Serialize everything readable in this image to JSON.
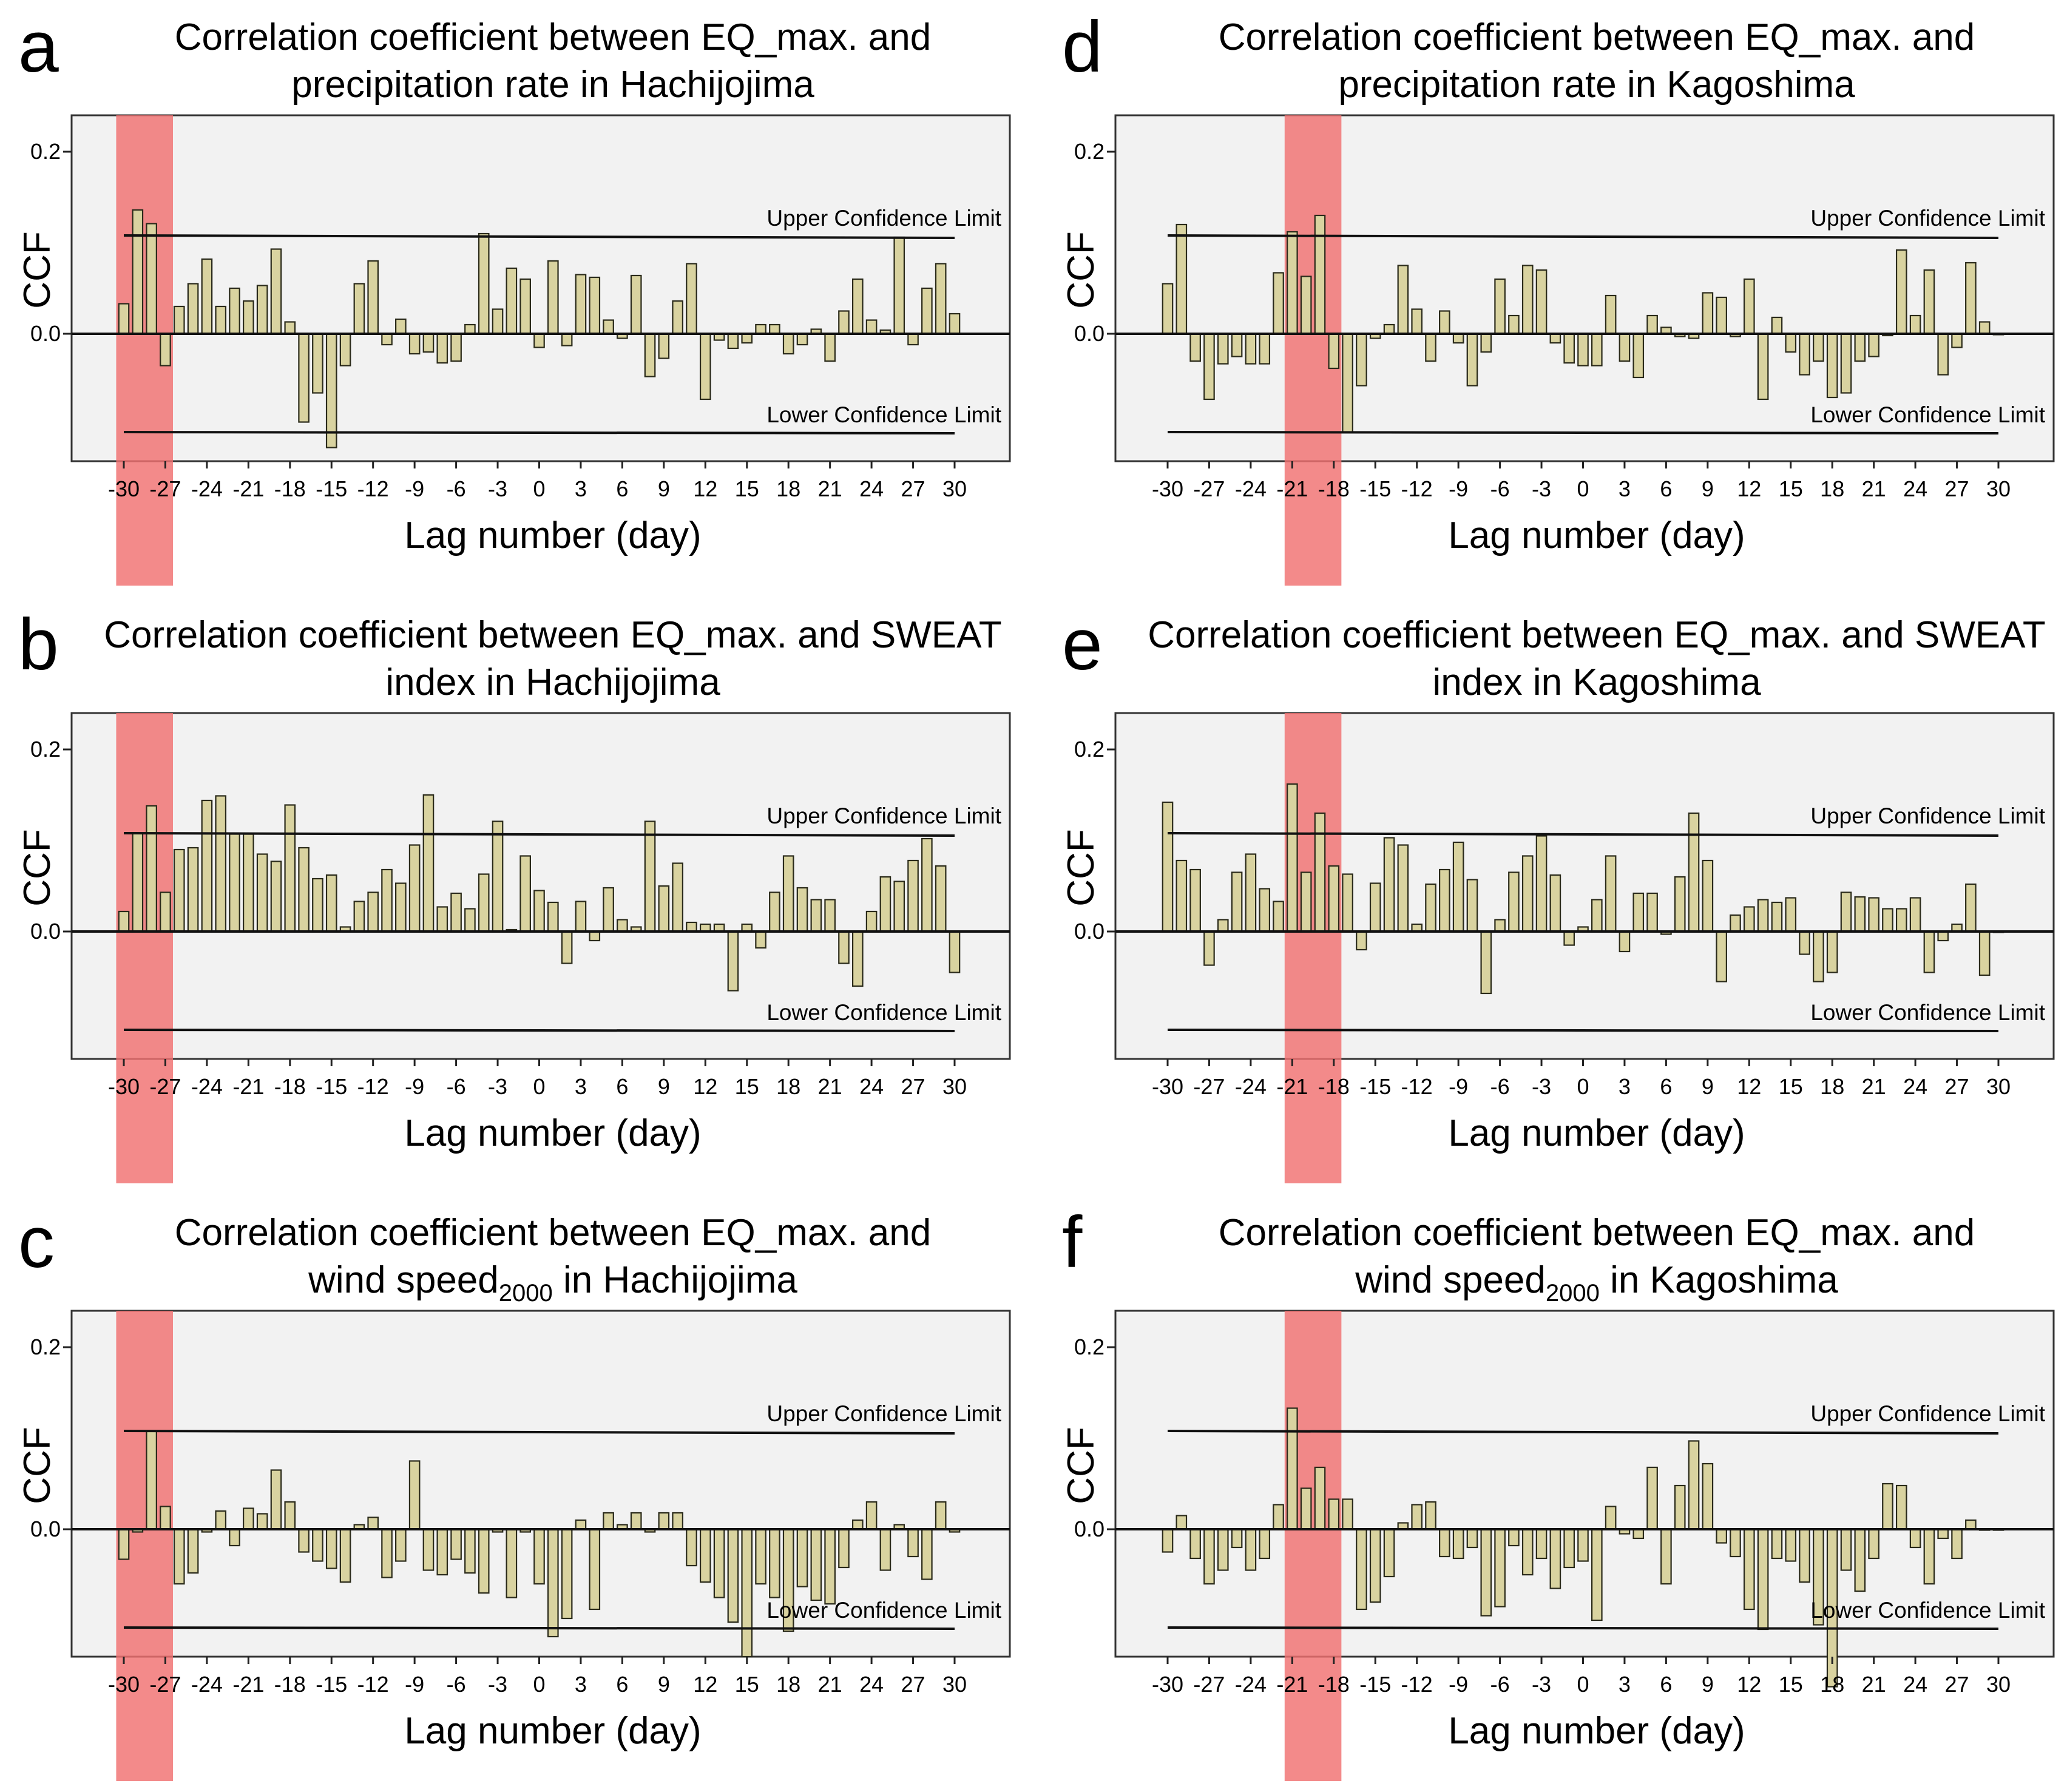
{
  "figure": {
    "shared_axes": {
      "xlabel": "Lag number (day)",
      "ylabel": "CCF",
      "yticks": [
        "0.0",
        "0.2"
      ],
      "ytick_values": [
        0.0,
        0.2
      ],
      "ylim": [
        -0.14,
        0.24
      ],
      "xticks": [
        "-30",
        "-27",
        "-24",
        "-21",
        "-18",
        "-15",
        "-12",
        "-9",
        "-6",
        "-3",
        "0",
        "3",
        "6",
        "9",
        "12",
        "15",
        "18",
        "21",
        "24",
        "27",
        "30"
      ],
      "upper_label": "Upper Confidence Limit",
      "lower_label": "Lower Confidence Limit"
    },
    "colors": {
      "bar_fill": "#d9d3a0",
      "bar_stroke": "#2a2a1a",
      "plot_bg": "#f2f2f2",
      "highlight": "#f07070"
    }
  },
  "chart_data": [
    {
      "type": "bar",
      "letter": "a",
      "title_line1": "Correlation coefficient between EQ_max. and",
      "title_line2": "precipitation rate in Hachijojima",
      "upper_limit": 0.108,
      "lower_limit": -0.108,
      "highlight_lags": [
        -30,
        -27
      ],
      "lags": [
        -30,
        30
      ],
      "values": [
        0.033,
        0.136,
        0.121,
        -0.035,
        0.03,
        0.055,
        0.082,
        0.03,
        0.05,
        0.036,
        0.053,
        0.093,
        0.013,
        -0.097,
        -0.065,
        -0.125,
        -0.035,
        0.055,
        0.08,
        -0.012,
        0.016,
        -0.022,
        -0.02,
        -0.032,
        -0.03,
        0.01,
        0.11,
        0.027,
        0.072,
        0.06,
        -0.015,
        0.08,
        -0.013,
        0.065,
        0.062,
        0.015,
        -0.005,
        0.064,
        -0.047,
        -0.027,
        0.036,
        0.077,
        -0.072,
        -0.007,
        -0.016,
        -0.01,
        0.01,
        0.01,
        -0.022,
        -0.012,
        0.005,
        -0.03,
        0.025,
        0.06,
        0.015,
        0.004,
        0.106,
        -0.012,
        0.05,
        0.077,
        0.022
      ]
    },
    {
      "type": "bar",
      "letter": "b",
      "title_line1": "Correlation coefficient between EQ_max. and SWEAT",
      "title_line2": "index in Hachijojima",
      "upper_limit": 0.108,
      "lower_limit": -0.108,
      "highlight_lags": [
        -30,
        -27
      ],
      "lags": [
        -30,
        30
      ],
      "values": [
        0.022,
        0.108,
        0.138,
        0.043,
        0.09,
        0.092,
        0.144,
        0.149,
        0.107,
        0.107,
        0.085,
        0.077,
        0.139,
        0.092,
        0.058,
        0.062,
        0.005,
        0.033,
        0.043,
        0.068,
        0.053,
        0.095,
        0.15,
        0.027,
        0.042,
        0.025,
        0.063,
        0.121,
        0.002,
        0.083,
        0.045,
        0.032,
        -0.035,
        0.033,
        -0.01,
        0.048,
        0.013,
        0.005,
        0.121,
        0.05,
        0.075,
        0.01,
        0.008,
        0.008,
        -0.065,
        0.008,
        -0.018,
        0.043,
        0.083,
        0.048,
        0.035,
        0.035,
        -0.035,
        -0.06,
        0.022,
        0.06,
        0.055,
        0.078,
        0.102,
        0.072,
        -0.045
      ]
    },
    {
      "type": "bar",
      "letter": "c",
      "title_line1": "Correlation coefficient between EQ_max. and",
      "title_line2_pre": "wind speed",
      "title_line2_sub": "2000",
      "title_line2_post": " in Hachijojima",
      "upper_limit": 0.108,
      "lower_limit": -0.108,
      "highlight_lags": [
        -30,
        -27
      ],
      "lags": [
        -30,
        30
      ],
      "values": [
        -0.033,
        -0.003,
        0.108,
        0.025,
        -0.06,
        -0.048,
        -0.003,
        0.02,
        -0.018,
        0.023,
        0.017,
        0.065,
        0.03,
        -0.025,
        -0.035,
        -0.043,
        -0.058,
        0.005,
        0.013,
        -0.053,
        -0.035,
        0.075,
        -0.045,
        -0.05,
        -0.033,
        -0.048,
        -0.07,
        -0.003,
        -0.075,
        -0.003,
        -0.06,
        -0.118,
        -0.098,
        0.01,
        -0.088,
        0.018,
        0.005,
        0.018,
        -0.003,
        0.018,
        0.018,
        -0.04,
        -0.058,
        -0.075,
        -0.102,
        -0.14,
        -0.06,
        -0.075,
        -0.112,
        -0.063,
        -0.078,
        -0.082,
        -0.042,
        0.01,
        0.03,
        -0.045,
        0.005,
        -0.03,
        -0.055,
        0.03,
        -0.003
      ]
    },
    {
      "type": "bar",
      "letter": "d",
      "title_line1": "Correlation coefficient between EQ_max. and",
      "title_line2": "precipitation rate in Kagoshima",
      "upper_limit": 0.108,
      "lower_limit": -0.108,
      "highlight_lags": [
        -21,
        -18
      ],
      "lags": [
        -30,
        30
      ],
      "values": [
        0.055,
        0.12,
        -0.03,
        -0.072,
        -0.033,
        -0.025,
        -0.033,
        -0.033,
        0.067,
        0.112,
        0.063,
        0.13,
        -0.038,
        -0.108,
        -0.057,
        -0.005,
        0.01,
        0.075,
        0.027,
        -0.03,
        0.025,
        -0.01,
        -0.057,
        -0.02,
        0.06,
        0.02,
        0.075,
        0.07,
        -0.01,
        -0.032,
        -0.035,
        -0.035,
        0.042,
        -0.03,
        -0.048,
        0.02,
        0.007,
        -0.003,
        -0.005,
        0.045,
        0.04,
        -0.003,
        0.06,
        -0.072,
        0.018,
        -0.02,
        -0.045,
        -0.03,
        -0.07,
        -0.065,
        -0.03,
        -0.025,
        -0.002,
        0.092,
        0.02,
        0.07,
        -0.045,
        -0.015,
        0.078,
        0.013,
        0.0
      ]
    },
    {
      "type": "bar",
      "letter": "e",
      "title_line1": "Correlation coefficient between EQ_max. and SWEAT",
      "title_line2": "index in Kagoshima",
      "upper_limit": 0.108,
      "lower_limit": -0.108,
      "highlight_lags": [
        -21,
        -18
      ],
      "lags": [
        -30,
        30
      ],
      "values": [
        0.142,
        0.078,
        0.068,
        -0.037,
        0.013,
        0.065,
        0.085,
        0.047,
        0.033,
        0.162,
        0.065,
        0.13,
        0.072,
        0.063,
        -0.02,
        0.053,
        0.103,
        0.095,
        0.008,
        0.052,
        0.068,
        0.098,
        0.057,
        -0.068,
        0.013,
        0.065,
        0.083,
        0.105,
        0.062,
        -0.015,
        0.005,
        0.035,
        0.083,
        -0.022,
        0.042,
        0.042,
        -0.003,
        0.06,
        0.13,
        0.078,
        -0.055,
        0.018,
        0.027,
        0.035,
        0.032,
        0.037,
        -0.025,
        -0.055,
        -0.045,
        0.043,
        0.038,
        0.037,
        0.025,
        0.025,
        0.037,
        -0.045,
        -0.01,
        0.008,
        0.052,
        -0.048,
        0.0
      ]
    },
    {
      "type": "bar",
      "letter": "f",
      "title_line1": "Correlation coefficient between EQ_max. and",
      "title_line2_pre": "wind speed",
      "title_line2_sub": "2000",
      "title_line2_post": " in Kagoshima",
      "upper_limit": 0.108,
      "lower_limit": -0.108,
      "highlight_lags": [
        -21,
        -18
      ],
      "lags": [
        -30,
        30
      ],
      "values": [
        -0.025,
        0.015,
        -0.032,
        -0.06,
        -0.045,
        -0.02,
        -0.045,
        -0.032,
        0.027,
        0.133,
        0.045,
        0.068,
        0.033,
        0.033,
        -0.088,
        -0.08,
        -0.052,
        0.007,
        0.027,
        0.03,
        -0.03,
        -0.032,
        -0.02,
        -0.095,
        -0.085,
        -0.018,
        -0.05,
        -0.032,
        -0.065,
        -0.042,
        -0.035,
        -0.1,
        0.025,
        -0.005,
        -0.01,
        0.068,
        -0.06,
        0.048,
        0.097,
        0.072,
        -0.015,
        -0.03,
        -0.088,
        -0.11,
        -0.032,
        -0.035,
        -0.058,
        -0.105,
        -0.173,
        -0.045,
        -0.068,
        -0.032,
        0.05,
        0.048,
        -0.02,
        -0.06,
        -0.01,
        -0.032,
        0.01,
        0.0,
        0.0
      ]
    }
  ]
}
